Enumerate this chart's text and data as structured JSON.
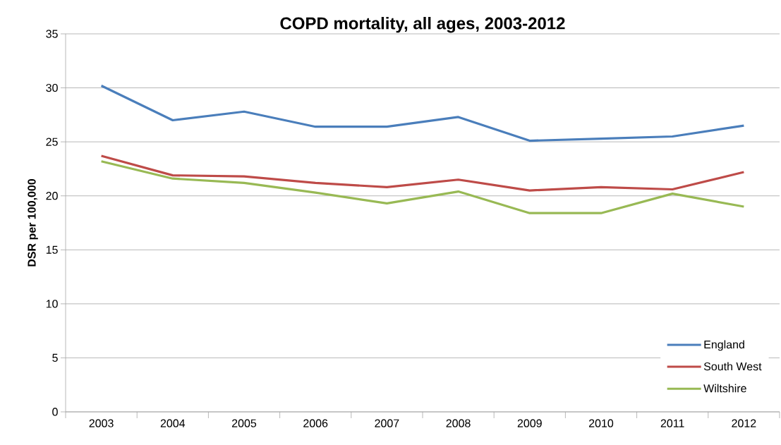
{
  "chart_data": {
    "type": "line",
    "title": "COPD mortality, all ages, 2003-2012",
    "ylabel": "DSR per 100,000",
    "categories": [
      "2003",
      "2004",
      "2005",
      "2006",
      "2007",
      "2008",
      "2009",
      "2010",
      "2011",
      "2012"
    ],
    "series": [
      {
        "name": "England",
        "color": "#4a7ebb",
        "values": [
          30.2,
          27.0,
          27.8,
          26.4,
          26.4,
          27.3,
          25.1,
          25.3,
          25.5,
          26.5
        ]
      },
      {
        "name": "South West",
        "color": "#be4b48",
        "values": [
          23.7,
          21.9,
          21.8,
          21.2,
          20.8,
          21.5,
          20.5,
          20.8,
          20.6,
          22.2
        ]
      },
      {
        "name": "Wiltshire",
        "color": "#98b954",
        "values": [
          23.2,
          21.6,
          21.2,
          20.3,
          19.3,
          20.4,
          18.4,
          18.4,
          20.2,
          19.0
        ]
      }
    ],
    "ylim": [
      0,
      35
    ],
    "yticks": [
      0,
      5,
      10,
      15,
      20,
      25,
      30,
      35
    ],
    "grid": "y",
    "legend": "bottom right",
    "marker": "none",
    "line_style": "solid"
  }
}
